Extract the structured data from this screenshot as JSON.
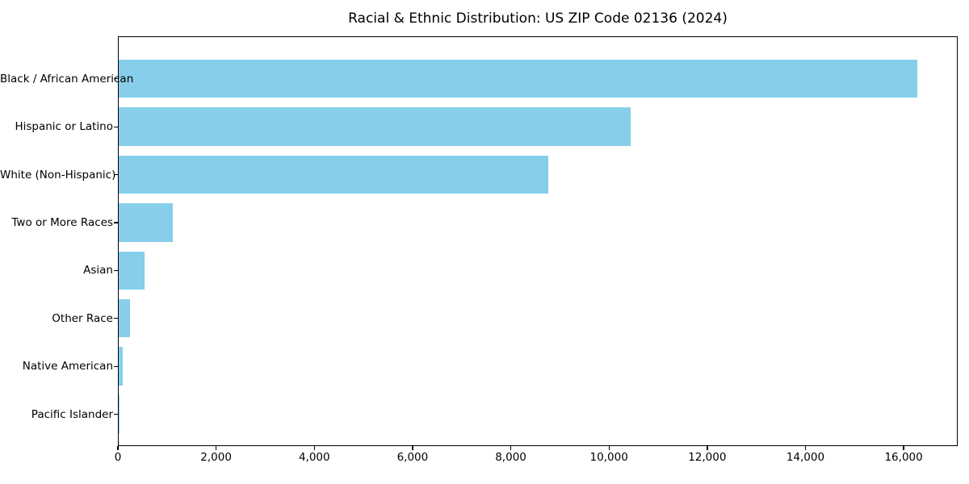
{
  "chart_data": {
    "type": "bar",
    "orientation": "horizontal",
    "title": "Racial & Ethnic Distribution: US ZIP Code 02136 (2024)",
    "categories": [
      "Black / African American",
      "Hispanic or Latino",
      "White (Non-Hispanic)",
      "Two or More Races",
      "Asian",
      "Other Race",
      "Native American",
      "Pacific Islander"
    ],
    "values": [
      16290,
      10450,
      8760,
      1110,
      520,
      230,
      90,
      10
    ],
    "xlabel": "",
    "ylabel": "",
    "xlim": [
      0,
      17100
    ],
    "x_ticks": [
      0,
      2000,
      4000,
      6000,
      8000,
      10000,
      12000,
      14000,
      16000
    ],
    "x_tick_labels": [
      "0",
      "2,000",
      "4,000",
      "6,000",
      "8,000",
      "10,000",
      "12,000",
      "14,000",
      "16,000"
    ],
    "bar_color": "#87CEEB",
    "axis_color": "#000000",
    "text_color": "#000000",
    "background_color": "#FFFFFF",
    "grid": false,
    "legend": false
  }
}
